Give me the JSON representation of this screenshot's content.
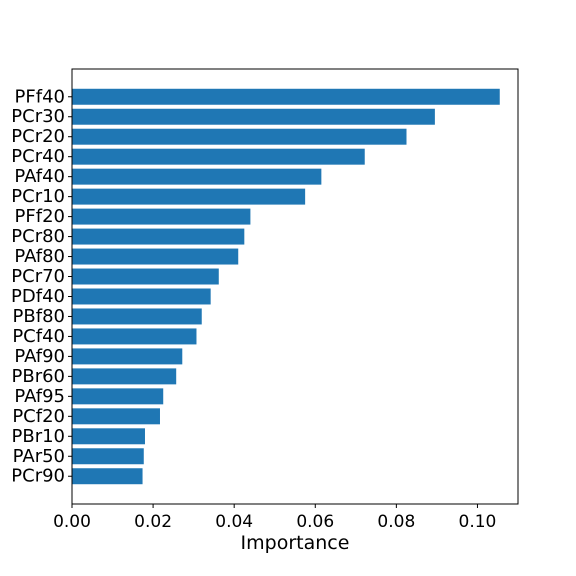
{
  "chart_data": {
    "type": "bar",
    "orientation": "horizontal",
    "title": "",
    "xlabel": "Importance",
    "ylabel": "",
    "xlim": [
      0,
      0.11
    ],
    "xticks": [
      0.0,
      0.02,
      0.04,
      0.06,
      0.08,
      0.1
    ],
    "xtick_labels": [
      "0.00",
      "0.02",
      "0.04",
      "0.06",
      "0.08",
      "0.10"
    ],
    "grid": false,
    "bar_color": "#1f77b4",
    "categories": [
      "PFf40",
      "PCr30",
      "PCr20",
      "PCr40",
      "PAf40",
      "PCr10",
      "PFf20",
      "PCr80",
      "PAf80",
      "PCr70",
      "PDf40",
      "PBf80",
      "PCf40",
      "PAf90",
      "PBr60",
      "PAf95",
      "PCf20",
      "PBr10",
      "PAr50",
      "PCr90"
    ],
    "values": [
      0.1055,
      0.0895,
      0.0825,
      0.0722,
      0.0615,
      0.0575,
      0.044,
      0.0425,
      0.041,
      0.0362,
      0.0342,
      0.032,
      0.0307,
      0.0272,
      0.0257,
      0.0225,
      0.0217,
      0.018,
      0.0177,
      0.0174
    ]
  }
}
